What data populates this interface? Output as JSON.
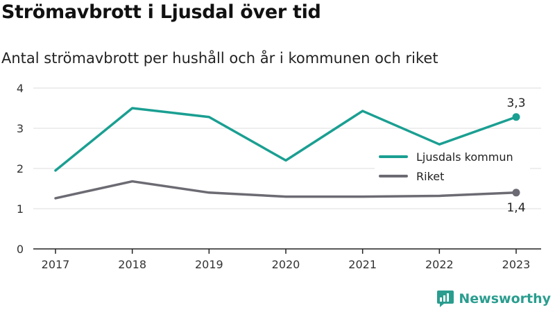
{
  "chart_data": {
    "type": "line",
    "title": "Strömavbrott i Ljusdal över tid",
    "subtitle": "Antal strömavbrott per hushåll och år i kommunen och riket",
    "xlabel": "",
    "ylabel": "",
    "x": [
      "2017",
      "2018",
      "2019",
      "2020",
      "2021",
      "2022",
      "2023"
    ],
    "ylim": [
      0,
      4
    ],
    "yticks": [
      "0",
      "1",
      "2",
      "3",
      "4"
    ],
    "grid": true,
    "legend_position": "right",
    "series": [
      {
        "name": "Ljusdals kommun",
        "values": [
          1.95,
          3.5,
          3.28,
          2.2,
          3.43,
          2.6,
          3.28
        ],
        "color": "#1a9f92",
        "end_label": "3,3"
      },
      {
        "name": "Riket",
        "values": [
          1.26,
          1.68,
          1.4,
          1.3,
          1.3,
          1.32,
          1.4
        ],
        "color": "#6c6b73",
        "end_label": "1,4"
      }
    ]
  },
  "brand": {
    "name": "Newsworthy",
    "icon": "newsworthy-logo-icon",
    "color": "#2a9d8f"
  }
}
